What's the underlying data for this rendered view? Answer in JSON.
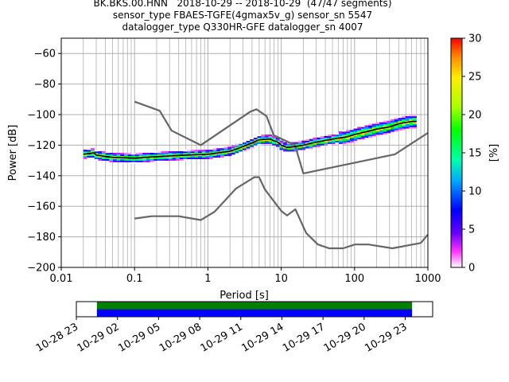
{
  "title_lines": [
    "BK.BKS.00.HNN   2018-10-29 -- 2018-10-29  (47/47 segments)",
    "sensor_type FBAES-TGFE(4gmax5v_g) sensor_sn 5547",
    "datalogger_type Q330HR-GFE datalogger_sn 4007"
  ],
  "chart_data": {
    "type": "heatmap",
    "xlabel": "Period [s]",
    "ylabel": "Power [dB]",
    "x_scale": "log",
    "xlim": [
      0.01,
      1000
    ],
    "ylim": [
      -200,
      -50
    ],
    "x_ticks": [
      0.01,
      0.1,
      1,
      10,
      100,
      1000
    ],
    "x_tick_labels": [
      "0.01",
      "0.1",
      "1",
      "10",
      "100",
      "1000"
    ],
    "y_ticks": [
      -200,
      -180,
      -160,
      -140,
      -120,
      -100,
      -80,
      -60
    ],
    "y_tick_labels": [
      "−200",
      "−180",
      "−160",
      "−140",
      "−120",
      "−100",
      "−80",
      "−60"
    ],
    "grid": true,
    "colorbar": {
      "label": "[%]",
      "range": [
        0,
        30
      ],
      "ticks": [
        0,
        5,
        10,
        15,
        20,
        25,
        30
      ],
      "tick_labels": [
        "0",
        "5",
        "10",
        "15",
        "20",
        "25",
        "30"
      ]
    },
    "series": [
      {
        "role": "noise-model-high",
        "color": "#666666",
        "segments": [
          [
            [
              0.1,
              -91.5
            ],
            [
              0.22,
              -97.5
            ],
            [
              0.32,
              -110.5
            ],
            [
              0.8,
              -120.0
            ],
            [
              3.8,
              -98.0
            ],
            [
              4.6,
              -96.5
            ],
            [
              6.3,
              -101.0
            ],
            [
              7.9,
              -113.5
            ],
            [
              15.4,
              -120.0
            ],
            [
              20.0,
              -138.5
            ],
            [
              354.8,
              -126.0
            ],
            [
              1000,
              -112.0
            ]
          ]
        ]
      },
      {
        "role": "noise-model-low",
        "color": "#666666",
        "segments": [
          [
            [
              0.1,
              -168.0
            ],
            [
              0.17,
              -166.5
            ],
            [
              0.4,
              -166.5
            ],
            [
              0.8,
              -169.0
            ],
            [
              1.24,
              -163.5
            ],
            [
              2.4,
              -148.5
            ],
            [
              4.3,
              -141.0
            ],
            [
              5.0,
              -141.0
            ],
            [
              6.0,
              -149.0
            ],
            [
              10.0,
              -163.0
            ],
            [
              12.0,
              -166.0
            ],
            [
              15.6,
              -162.0
            ],
            [
              21.9,
              -177.5
            ],
            [
              31.6,
              -185.0
            ],
            [
              45.0,
              -187.5
            ],
            [
              70.0,
              -187.5
            ],
            [
              101.0,
              -185.0
            ],
            [
              154.0,
              -185.0
            ],
            [
              328.0,
              -187.5
            ],
            [
              800.0,
              -184.0
            ],
            [
              1000,
              -178.5
            ]
          ]
        ]
      },
      {
        "role": "mode",
        "color": "#000000",
        "segments": [
          [
            [
              0.02,
              -126.0
            ],
            [
              0.028,
              -125.0
            ],
            [
              0.03,
              -126.5
            ],
            [
              0.05,
              -128.0
            ],
            [
              0.1,
              -128.5
            ],
            [
              0.2,
              -127.5
            ],
            [
              0.5,
              -126.5
            ],
            [
              1.0,
              -126.0
            ],
            [
              2.0,
              -124.0
            ],
            [
              3.0,
              -121.0
            ],
            [
              4.0,
              -118.5
            ],
            [
              5.0,
              -116.5
            ],
            [
              7.0,
              -116.0
            ],
            [
              9.0,
              -118.0
            ],
            [
              10.0,
              -120.0
            ],
            [
              12.0,
              -121.5
            ],
            [
              15.0,
              -121.0
            ],
            [
              20.0,
              -120.0
            ],
            [
              30.0,
              -118.0
            ],
            [
              50.0,
              -116.0
            ],
            [
              80.0,
              -114.5
            ],
            [
              100.0,
              -113.0
            ],
            [
              150.0,
              -111.0
            ],
            [
              200.0,
              -109.5
            ],
            [
              300.0,
              -108.0
            ],
            [
              400.0,
              -106.0
            ],
            [
              600.0,
              -104.5
            ],
            [
              700.0,
              -104.5
            ]
          ]
        ]
      }
    ],
    "psd_probability": {
      "x_start": 0.02,
      "x_end": 700.0,
      "spread_db": 3.0,
      "max_percent": 30
    },
    "time_axis": {
      "tick_labels": [
        "10-28 23",
        "10-29 02",
        "10-29 05",
        "10-29 08",
        "10-29 11",
        "10-29 14",
        "10-29 17",
        "10-29 20",
        "10-29 23"
      ],
      "data_start_hour": 0.5,
      "data_end_hour": 23.5,
      "axis_start_hour": -1,
      "axis_end_hour": 25.0,
      "bar_colors": [
        "#008000",
        "#0000ff"
      ]
    }
  }
}
